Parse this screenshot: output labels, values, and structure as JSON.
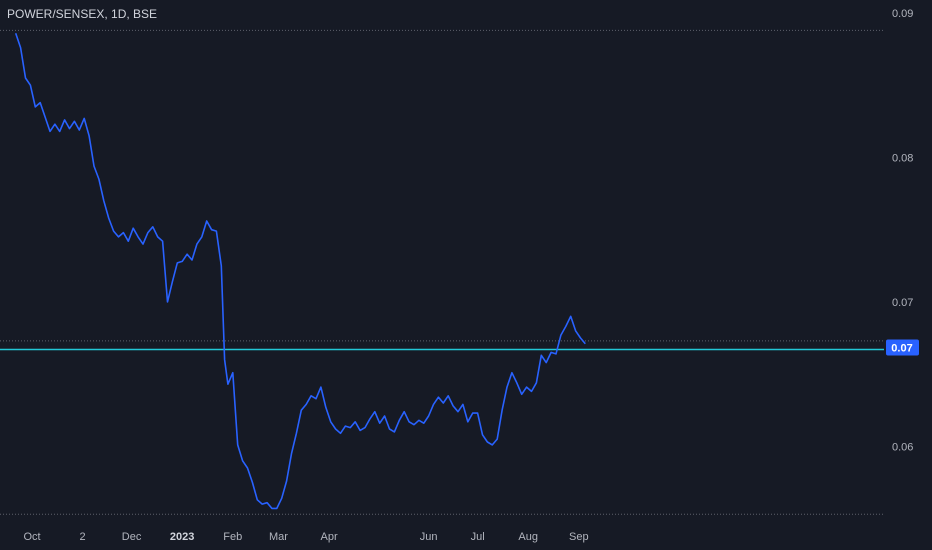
{
  "header": {
    "symbol": "POWER/SENSEX, 1D, BSE"
  },
  "colors": {
    "background": "#161a25",
    "line": "#2962ff",
    "hline": "#22c7d6",
    "price_label": "#2962ff",
    "text": "#b2b5be",
    "dotted": "#5d606b"
  },
  "chart_data": {
    "type": "line",
    "title": "POWER/SENSEX, 1D, BSE",
    "ylim": [
      0.0549,
      0.0909
    ],
    "y_ticks": [
      0.06,
      0.07,
      0.08,
      0.09
    ],
    "y_tick_labels": [
      "0.06",
      "0.07",
      "0.08",
      "0.09"
    ],
    "x_tick_labels": [
      "Oct",
      "2",
      "Dec",
      "2023",
      "Feb",
      "Mar",
      "Apr",
      "Jun",
      "Jul",
      "Aug",
      "Sep"
    ],
    "x_tick_dates": [
      "2022-10-01",
      "2022-11-01",
      "2022-12-01",
      "2023-01-01",
      "2023-02-01",
      "2023-03-01",
      "2023-04-01",
      "2023-06-01",
      "2023-07-01",
      "2023-08-01",
      "2023-09-01"
    ],
    "dotted_levels": [
      0.0888,
      0.0553,
      0.0673
    ],
    "horizontal_line": 0.0667,
    "last_price_label": "0.07",
    "grid": false,
    "series": [
      {
        "points": [
          [
            "2022-09-21",
            0.0886
          ],
          [
            "2022-09-24",
            0.0876
          ],
          [
            "2022-09-27",
            0.0855
          ],
          [
            "2022-09-30",
            0.085
          ],
          [
            "2022-10-03",
            0.0835
          ],
          [
            "2022-10-06",
            0.0838
          ],
          [
            "2022-10-09",
            0.0828
          ],
          [
            "2022-10-12",
            0.0818
          ],
          [
            "2022-10-15",
            0.0823
          ],
          [
            "2022-10-18",
            0.0818
          ],
          [
            "2022-10-21",
            0.0826
          ],
          [
            "2022-10-24",
            0.082
          ],
          [
            "2022-10-27",
            0.0825
          ],
          [
            "2022-10-30",
            0.0819
          ],
          [
            "2022-11-02",
            0.0827
          ],
          [
            "2022-11-05",
            0.0815
          ],
          [
            "2022-11-08",
            0.0794
          ],
          [
            "2022-11-11",
            0.0785
          ],
          [
            "2022-11-14",
            0.077
          ],
          [
            "2022-11-17",
            0.0758
          ],
          [
            "2022-11-20",
            0.0749
          ],
          [
            "2022-11-23",
            0.0745
          ],
          [
            "2022-11-26",
            0.0748
          ],
          [
            "2022-11-29",
            0.0742
          ],
          [
            "2022-12-02",
            0.0751
          ],
          [
            "2022-12-05",
            0.0745
          ],
          [
            "2022-12-08",
            0.074
          ],
          [
            "2022-12-11",
            0.0748
          ],
          [
            "2022-12-14",
            0.0752
          ],
          [
            "2022-12-17",
            0.0745
          ],
          [
            "2022-12-20",
            0.0742
          ],
          [
            "2022-12-23",
            0.07
          ],
          [
            "2022-12-26",
            0.0714
          ],
          [
            "2022-12-29",
            0.0727
          ],
          [
            "2023-01-01",
            0.0728
          ],
          [
            "2023-01-04",
            0.0733
          ],
          [
            "2023-01-07",
            0.0729
          ],
          [
            "2023-01-10",
            0.074
          ],
          [
            "2023-01-13",
            0.0745
          ],
          [
            "2023-01-16",
            0.0756
          ],
          [
            "2023-01-19",
            0.075
          ],
          [
            "2023-01-22",
            0.0749
          ],
          [
            "2023-01-25",
            0.0725
          ],
          [
            "2023-01-27",
            0.066
          ],
          [
            "2023-01-29",
            0.0643
          ],
          [
            "2023-02-01",
            0.0651
          ],
          [
            "2023-02-04",
            0.0601
          ],
          [
            "2023-02-07",
            0.059
          ],
          [
            "2023-02-10",
            0.0585
          ],
          [
            "2023-02-13",
            0.0575
          ],
          [
            "2023-02-16",
            0.0563
          ],
          [
            "2023-02-19",
            0.056
          ],
          [
            "2023-02-22",
            0.0561
          ],
          [
            "2023-02-25",
            0.0557
          ],
          [
            "2023-02-28",
            0.0557
          ],
          [
            "2023-03-03",
            0.0564
          ],
          [
            "2023-03-06",
            0.0576
          ],
          [
            "2023-03-09",
            0.0595
          ],
          [
            "2023-03-12",
            0.0609
          ],
          [
            "2023-03-15",
            0.0625
          ],
          [
            "2023-03-18",
            0.0629
          ],
          [
            "2023-03-21",
            0.0635
          ],
          [
            "2023-03-24",
            0.0633
          ],
          [
            "2023-03-27",
            0.0641
          ],
          [
            "2023-03-30",
            0.0627
          ],
          [
            "2023-04-02",
            0.0617
          ],
          [
            "2023-04-05",
            0.0612
          ],
          [
            "2023-04-08",
            0.0609
          ],
          [
            "2023-04-11",
            0.0614
          ],
          [
            "2023-04-14",
            0.0613
          ],
          [
            "2023-04-17",
            0.0617
          ],
          [
            "2023-04-20",
            0.0611
          ],
          [
            "2023-04-23",
            0.0613
          ],
          [
            "2023-04-26",
            0.0619
          ],
          [
            "2023-04-29",
            0.0624
          ],
          [
            "2023-05-02",
            0.0616
          ],
          [
            "2023-05-05",
            0.0621
          ],
          [
            "2023-05-08",
            0.0612
          ],
          [
            "2023-05-11",
            0.061
          ],
          [
            "2023-05-14",
            0.0618
          ],
          [
            "2023-05-17",
            0.0624
          ],
          [
            "2023-05-20",
            0.0617
          ],
          [
            "2023-05-23",
            0.0615
          ],
          [
            "2023-05-26",
            0.0618
          ],
          [
            "2023-05-29",
            0.0616
          ],
          [
            "2023-06-01",
            0.0621
          ],
          [
            "2023-06-04",
            0.0629
          ],
          [
            "2023-06-07",
            0.0634
          ],
          [
            "2023-06-10",
            0.063
          ],
          [
            "2023-06-13",
            0.0635
          ],
          [
            "2023-06-16",
            0.0628
          ],
          [
            "2023-06-19",
            0.0624
          ],
          [
            "2023-06-22",
            0.0629
          ],
          [
            "2023-06-25",
            0.0617
          ],
          [
            "2023-06-28",
            0.0623
          ],
          [
            "2023-07-01",
            0.0623
          ],
          [
            "2023-07-04",
            0.0608
          ],
          [
            "2023-07-07",
            0.0603
          ],
          [
            "2023-07-10",
            0.0601
          ],
          [
            "2023-07-13",
            0.0605
          ],
          [
            "2023-07-16",
            0.0625
          ],
          [
            "2023-07-19",
            0.0641
          ],
          [
            "2023-07-22",
            0.0651
          ],
          [
            "2023-07-25",
            0.0644
          ],
          [
            "2023-07-28",
            0.0636
          ],
          [
            "2023-07-31",
            0.0641
          ],
          [
            "2023-08-03",
            0.0638
          ],
          [
            "2023-08-06",
            0.0644
          ],
          [
            "2023-08-09",
            0.0663
          ],
          [
            "2023-08-12",
            0.0658
          ],
          [
            "2023-08-15",
            0.0665
          ],
          [
            "2023-08-18",
            0.0664
          ],
          [
            "2023-08-21",
            0.0677
          ],
          [
            "2023-08-24",
            0.0683
          ],
          [
            "2023-08-27",
            0.069
          ],
          [
            "2023-08-30",
            0.068
          ],
          [
            "2023-09-02",
            0.0675
          ],
          [
            "2023-09-05",
            0.0671
          ]
        ]
      }
    ]
  }
}
